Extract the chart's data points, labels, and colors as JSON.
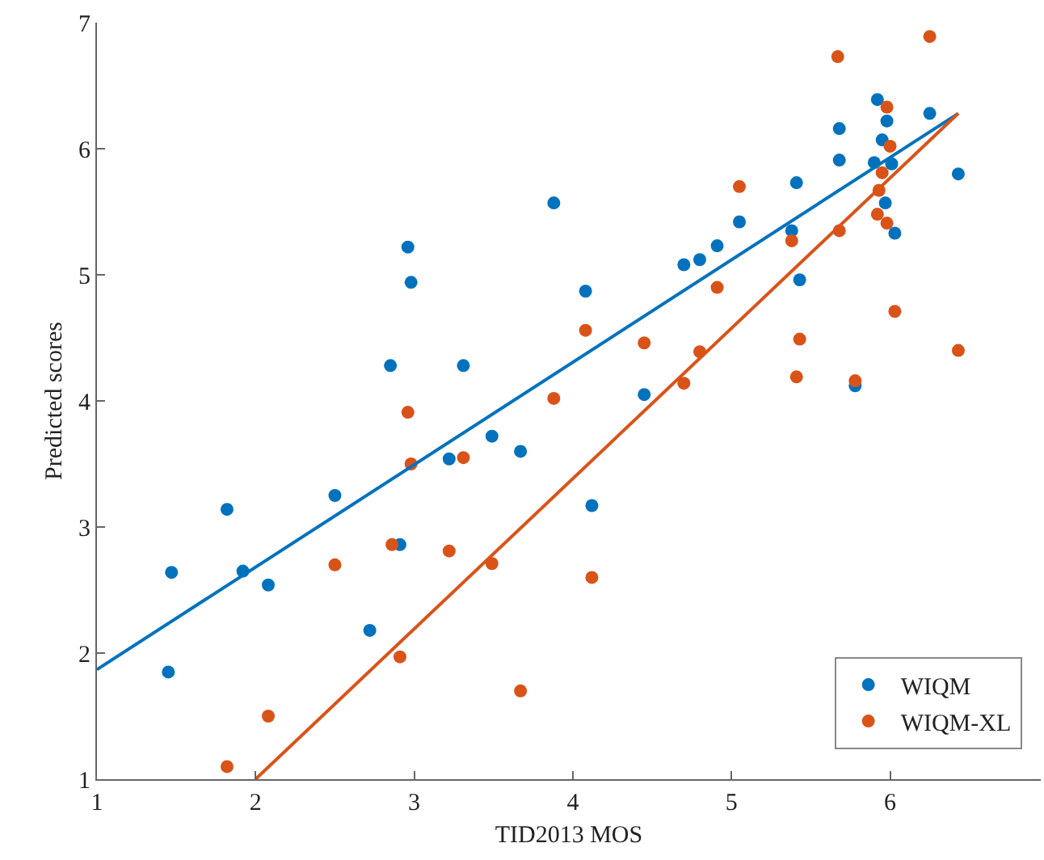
{
  "chart_data": {
    "type": "scatter",
    "xlabel": "TID2013 MOS",
    "ylabel": "Predicted scores",
    "xlim": [
      1,
      6.95
    ],
    "xticks": [
      1,
      2,
      3,
      4,
      5,
      6
    ],
    "ylim": [
      1,
      7
    ],
    "yticks": [
      1,
      2,
      3,
      4,
      5,
      6,
      7
    ],
    "grid": false,
    "legend": "bottom right",
    "marker": "circle",
    "series": [
      {
        "name": "WIQM",
        "color": "#0072bd",
        "x": [
          1.47,
          1.45,
          1.82,
          1.92,
          2.08,
          2.5,
          2.72,
          2.85,
          2.91,
          2.96,
          2.98,
          3.22,
          3.31,
          3.49,
          3.67,
          3.88,
          4.08,
          4.12,
          4.45,
          4.7,
          4.8,
          4.91,
          5.05,
          5.38,
          5.41,
          5.43,
          5.68,
          5.68,
          5.78,
          5.92,
          5.9,
          5.95,
          5.98,
          5.97,
          6.01,
          6.03,
          6.25,
          6.43
        ],
        "values": [
          2.64,
          1.85,
          3.14,
          2.65,
          2.54,
          3.25,
          2.18,
          4.28,
          2.86,
          5.22,
          4.94,
          3.54,
          4.28,
          3.72,
          3.6,
          5.57,
          4.87,
          3.17,
          4.05,
          5.08,
          5.12,
          5.23,
          5.42,
          5.35,
          5.73,
          4.96,
          6.16,
          5.91,
          4.12,
          6.39,
          5.89,
          6.07,
          6.22,
          5.57,
          5.88,
          5.33,
          6.28,
          5.8
        ]
      },
      {
        "name": "WIQM-XL",
        "color": "#d95319",
        "x": [
          1.82,
          2.08,
          2.5,
          2.86,
          2.91,
          2.96,
          2.98,
          3.22,
          3.31,
          3.49,
          3.67,
          3.88,
          4.08,
          4.12,
          4.45,
          4.7,
          4.8,
          4.91,
          5.05,
          5.38,
          5.41,
          5.43,
          5.67,
          5.68,
          5.78,
          5.93,
          5.92,
          5.95,
          5.98,
          5.98,
          6.0,
          6.03,
          6.25,
          6.43
        ],
        "values": [
          1.1,
          1.5,
          2.7,
          2.86,
          1.97,
          3.91,
          3.5,
          2.81,
          3.55,
          2.71,
          1.7,
          4.02,
          4.56,
          2.6,
          4.46,
          4.14,
          4.39,
          4.9,
          5.7,
          5.27,
          4.19,
          4.49,
          6.73,
          5.35,
          4.16,
          5.67,
          5.48,
          5.81,
          6.33,
          5.41,
          6.02,
          4.71,
          6.89,
          4.4
        ]
      },
      {
        "type": "line",
        "marker": "none",
        "color": "#0072bd",
        "x": [
          1,
          6.43
        ],
        "values": [
          1.87,
          6.28
        ]
      },
      {
        "type": "line",
        "marker": "none",
        "color": "#d95319",
        "x": [
          2,
          6.43
        ],
        "values": [
          1.0,
          6.28
        ]
      }
    ]
  }
}
